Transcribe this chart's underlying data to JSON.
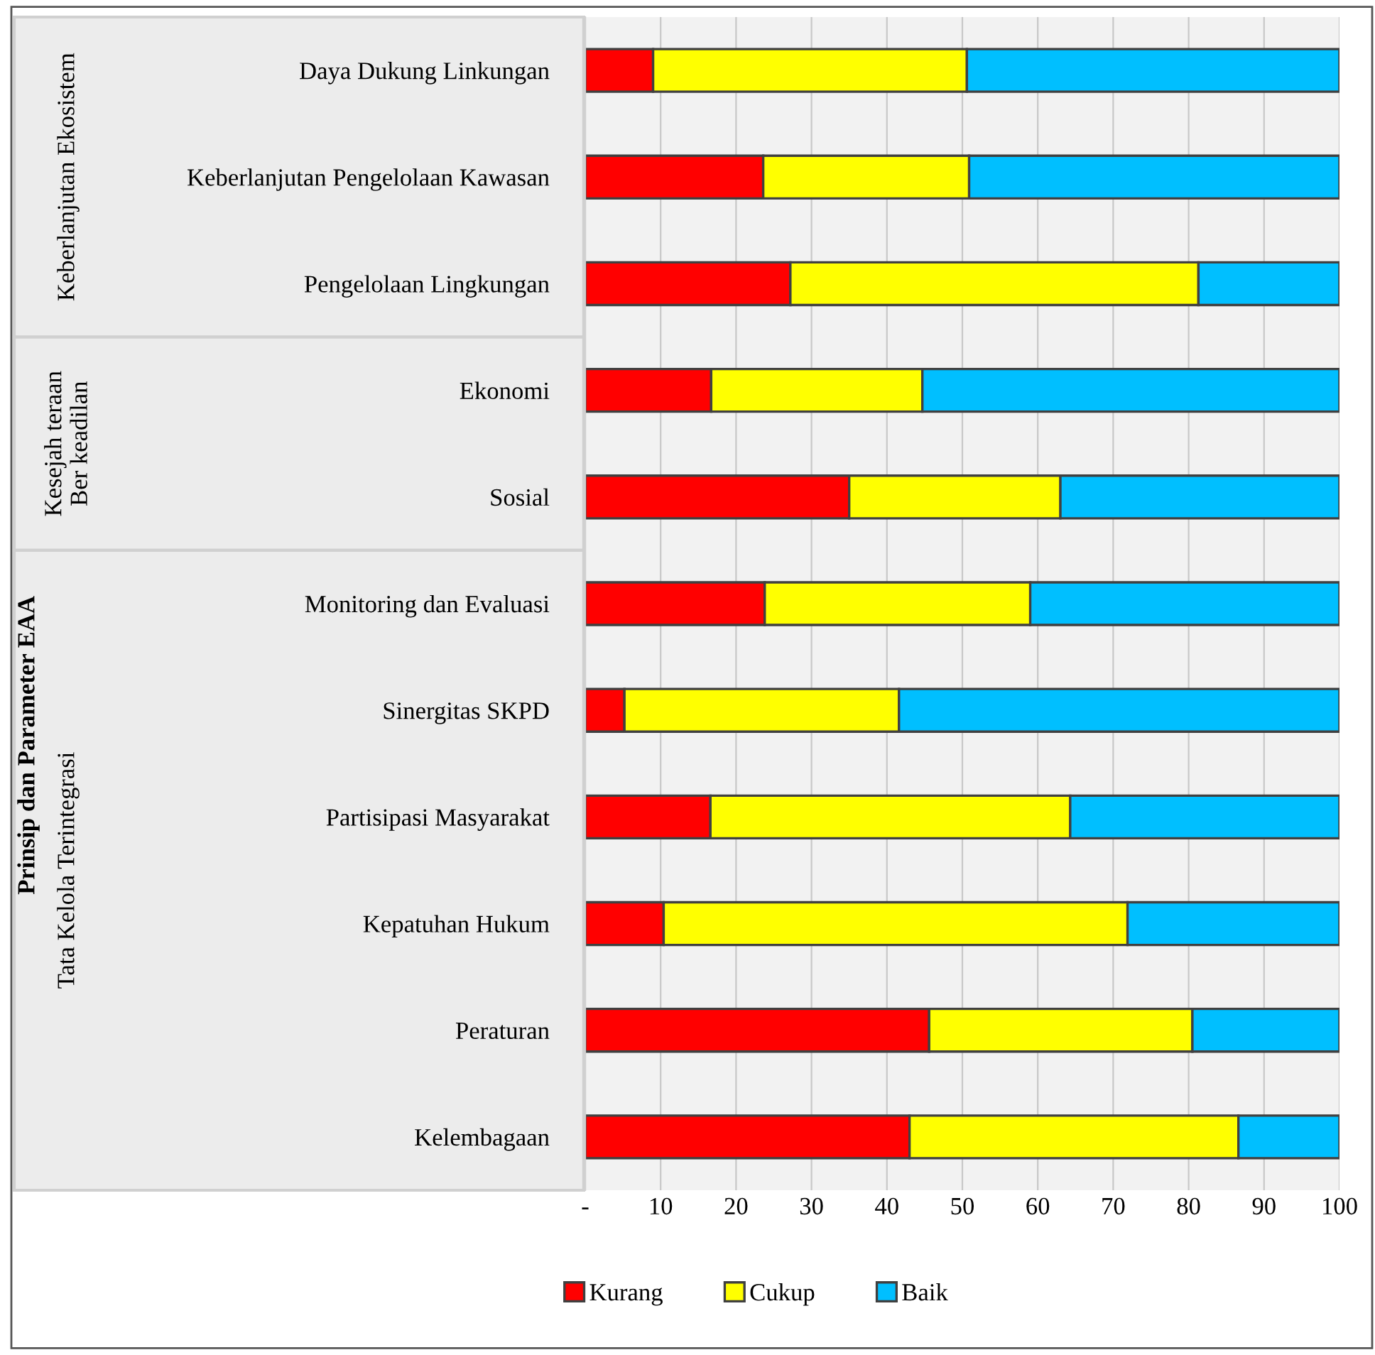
{
  "chart_data": {
    "type": "bar",
    "orientation": "horizontal",
    "stacked": true,
    "annotations": [
      "Prinsip dan Parameter EAA",
      "Keberlanjutan Ekosistem",
      "Kesejah teraan\nBer keadilan",
      "Tata Kelola Terintegrasi"
    ],
    "categories": [
      "Daya Dukung Linkungan",
      "Keberlanjutan Pengelolaan Kawasan",
      "Pengelolaan Lingkungan",
      "Ekonomi",
      "Sosial",
      "Monitoring dan Evaluasi",
      "Sinergitas SKPD",
      "Partisipasi Masyarakat",
      "Kepatuhan Hukum",
      "Peraturan",
      "Kelembagaan"
    ],
    "series": [
      {
        "name": "Kurang",
        "color": "#ff0000",
        "values": [
          9.0,
          23.6,
          27.2,
          16.7,
          35.0,
          23.8,
          5.2,
          16.6,
          10.4,
          45.6,
          43.0
        ]
      },
      {
        "name": "Cukup",
        "color": "#ffff00",
        "values": [
          41.6,
          27.3,
          54.1,
          28.0,
          28.0,
          35.2,
          36.4,
          47.7,
          61.5,
          34.9,
          43.6
        ]
      },
      {
        "name": "Baik",
        "color": "#00bfff",
        "values": [
          49.4,
          49.1,
          18.7,
          55.3,
          37.0,
          41.0,
          58.4,
          35.7,
          28.1,
          19.5,
          13.4
        ]
      }
    ],
    "xlim": [
      0,
      100
    ],
    "xticks": [
      {
        "value": 0,
        "label": "-"
      },
      10,
      20,
      30,
      40,
      50,
      60,
      70,
      80,
      90,
      100
    ],
    "grid": "x",
    "legend": "bottom"
  }
}
